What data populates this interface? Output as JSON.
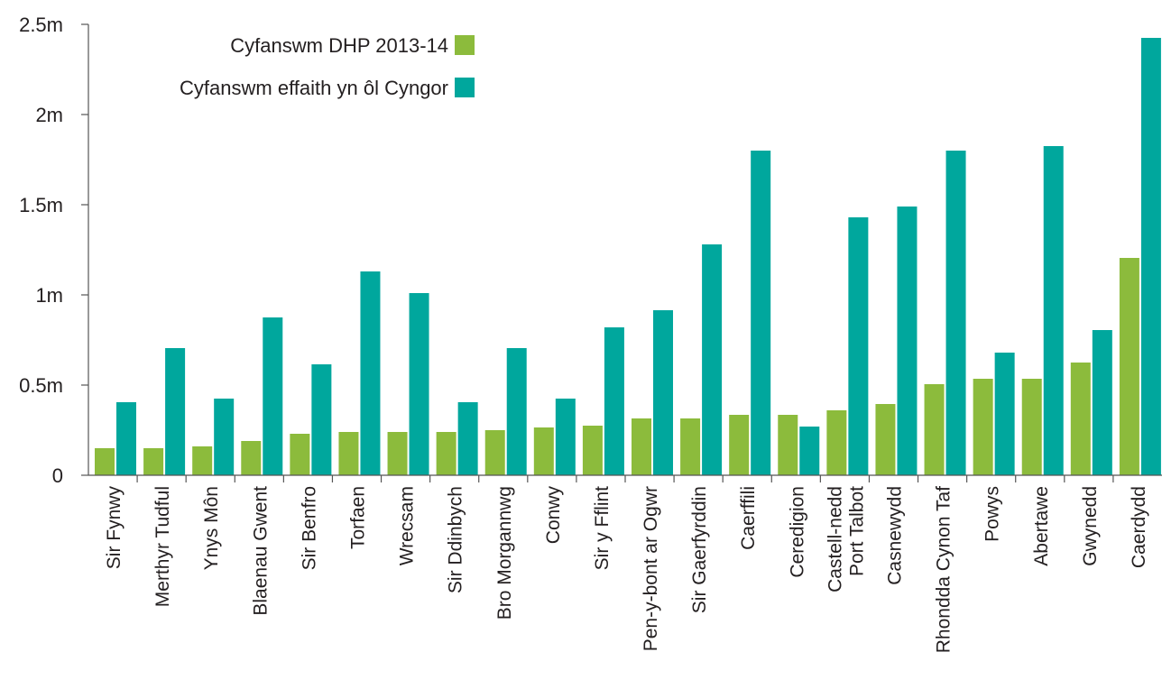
{
  "chart_data": {
    "type": "bar",
    "title": "",
    "xlabel": "",
    "ylabel": "",
    "ylim": [
      0,
      2500000
    ],
    "yticks": [
      {
        "value": 0,
        "label": "0"
      },
      {
        "value": 500000,
        "label": "0.5m"
      },
      {
        "value": 1000000,
        "label": "1m"
      },
      {
        "value": 1500000,
        "label": "1.5m"
      },
      {
        "value": 2000000,
        "label": "2m"
      },
      {
        "value": 2500000,
        "label": "2.5m"
      }
    ],
    "grid": false,
    "legend_position": "top-left",
    "categories": [
      [
        "Sir Fynwy"
      ],
      [
        "Merthyr Tudful"
      ],
      [
        "Ynys Môn"
      ],
      [
        "Blaenau Gwent"
      ],
      [
        "Sir Benfro"
      ],
      [
        "Torfaen"
      ],
      [
        "Wrecsam"
      ],
      [
        "Sir Ddinbych"
      ],
      [
        "Bro Morgannwg"
      ],
      [
        "Conwy"
      ],
      [
        "Sir y Fflint"
      ],
      [
        "Pen-y-bont ar Ogwr"
      ],
      [
        "Sir Gaerfyrddin"
      ],
      [
        "Caerffili"
      ],
      [
        "Ceredigion"
      ],
      [
        "Castell-nedd",
        "Port Talbot"
      ],
      [
        "Casnewydd"
      ],
      [
        "Rhondda Cynon Taf"
      ],
      [
        "Powys"
      ],
      [
        "Abertawe"
      ],
      [
        "Gwynedd"
      ],
      [
        "Caerdydd"
      ]
    ],
    "series": [
      {
        "name": "Cyfanswm DHP 2013-14",
        "color": "#8cbb3c",
        "values": [
          150000,
          150000,
          160000,
          190000,
          230000,
          240000,
          240000,
          240000,
          250000,
          265000,
          275000,
          315000,
          315000,
          335000,
          335000,
          360000,
          395000,
          505000,
          535000,
          535000,
          625000,
          1205000
        ]
      },
      {
        "name": "Cyfanswm effaith yn ôl Cyngor",
        "color": "#00a79d",
        "values": [
          405000,
          705000,
          425000,
          875000,
          615000,
          1130000,
          1010000,
          405000,
          705000,
          425000,
          820000,
          915000,
          1280000,
          1800000,
          270000,
          1430000,
          1490000,
          1800000,
          680000,
          1825000,
          805000,
          2425000
        ]
      }
    ]
  }
}
